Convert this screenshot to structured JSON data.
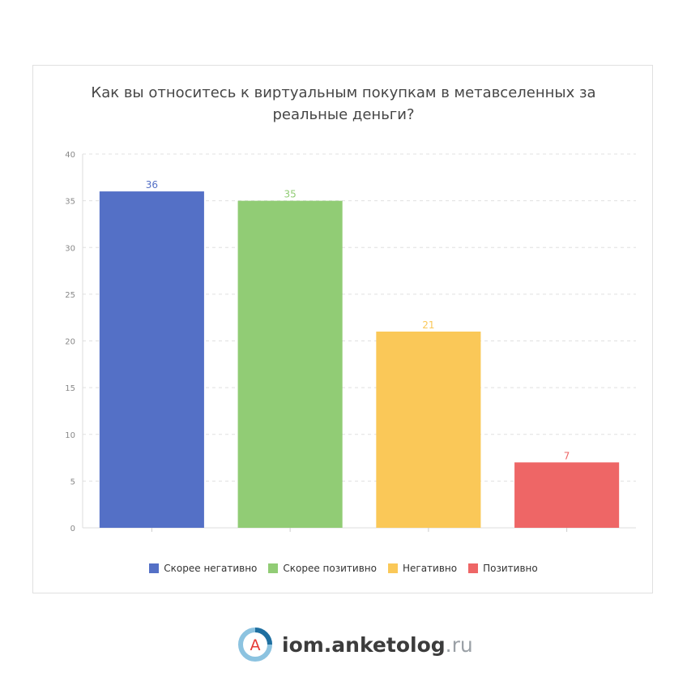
{
  "chart_data": {
    "type": "bar",
    "title": "Как вы относитесь к виртуальным покупкам в метавселенных за реальные деньги?",
    "categories": [
      null
    ],
    "series": [
      {
        "name": "Скорее негативно",
        "color": "#5470c6",
        "values": [
          36
        ]
      },
      {
        "name": "Скорее позитивно",
        "color": "#91cc75",
        "values": [
          35
        ]
      },
      {
        "name": "Негативно",
        "color": "#fac858",
        "values": [
          21
        ]
      },
      {
        "name": "Позитивно",
        "color": "#ee6666",
        "values": [
          7
        ]
      }
    ],
    "ylim": [
      0,
      40
    ],
    "yticks": [
      0,
      5,
      10,
      15,
      20,
      25,
      30,
      35,
      40
    ],
    "grid": true,
    "legend": "bottom"
  },
  "footer": {
    "logo_letter": "A",
    "brand": "iom.anketolog",
    "domain": ".ru"
  }
}
